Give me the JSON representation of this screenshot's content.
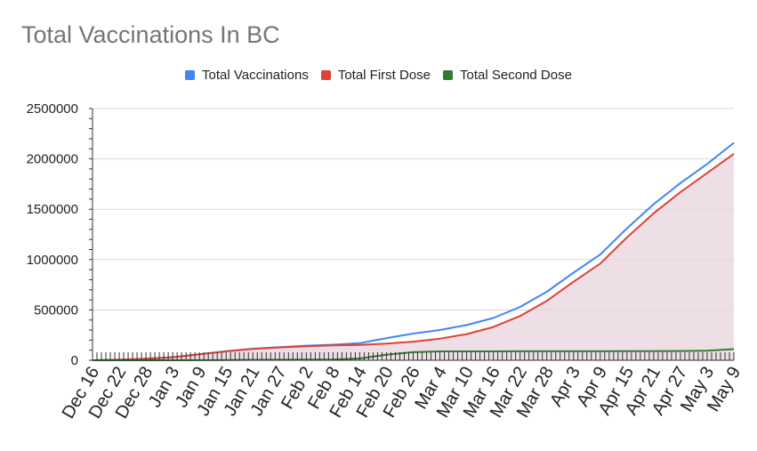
{
  "title": "Total Vaccinations In BC",
  "chart_data": {
    "type": "area",
    "title": "Total Vaccinations In BC",
    "xlabel": "",
    "ylabel": "",
    "ylim": [
      0,
      2500000
    ],
    "yticks": [
      "2500000",
      "2000000",
      "1500000",
      "1000000",
      "500000",
      "0"
    ],
    "ytick_values": [
      2500000,
      2000000,
      1500000,
      1000000,
      500000,
      0
    ],
    "x_tick_labels": [
      "Dec 16",
      "Dec 22",
      "Dec 28",
      "Jan 3",
      "Jan 9",
      "Jan 15",
      "Jan 21",
      "Jan 27",
      "Feb 2",
      "Feb 8",
      "Feb 14",
      "Feb 20",
      "Feb 26",
      "Mar 4",
      "Mar 10",
      "Mar 16",
      "Mar 22",
      "Mar 28",
      "Apr 3",
      "Apr 9",
      "Apr 15",
      "Apr 21",
      "Apr 27",
      "May 3",
      "May 9"
    ],
    "grid": true,
    "legend_position": "top",
    "x_dates": [
      "Dec 16",
      "Dec 22",
      "Dec 28",
      "Jan 3",
      "Jan 9",
      "Jan 15",
      "Jan 21",
      "Jan 27",
      "Feb 2",
      "Feb 8",
      "Feb 14",
      "Feb 20",
      "Feb 26",
      "Mar 4",
      "Mar 10",
      "Mar 16",
      "Mar 22",
      "Mar 28",
      "Apr 3",
      "Apr 9",
      "Apr 15",
      "Apr 21",
      "Apr 27",
      "May 3",
      "May 9"
    ],
    "series": [
      {
        "name": "Total Vaccinations",
        "color": "#4285f4",
        "values": [
          0,
          5000,
          15000,
          30000,
          60000,
          90000,
          115000,
          130000,
          145000,
          155000,
          170000,
          220000,
          265000,
          300000,
          350000,
          420000,
          530000,
          680000,
          870000,
          1050000,
          1310000,
          1550000,
          1760000,
          1950000,
          2160000
        ]
      },
      {
        "name": "Total First Dose",
        "color": "#db4437",
        "values": [
          0,
          5000,
          15000,
          30000,
          60000,
          88000,
          112000,
          127000,
          140000,
          148000,
          152000,
          165000,
          185000,
          215000,
          260000,
          330000,
          440000,
          590000,
          780000,
          960000,
          1220000,
          1460000,
          1670000,
          1860000,
          2050000
        ]
      },
      {
        "name": "Total Second Dose",
        "color": "#2e7d32",
        "values": [
          0,
          0,
          0,
          0,
          1000,
          3000,
          4000,
          5000,
          6000,
          8000,
          18000,
          55000,
          80000,
          88000,
          88000,
          88000,
          89000,
          89000,
          89000,
          89000,
          90000,
          90000,
          92000,
          95000,
          110000
        ]
      }
    ]
  }
}
